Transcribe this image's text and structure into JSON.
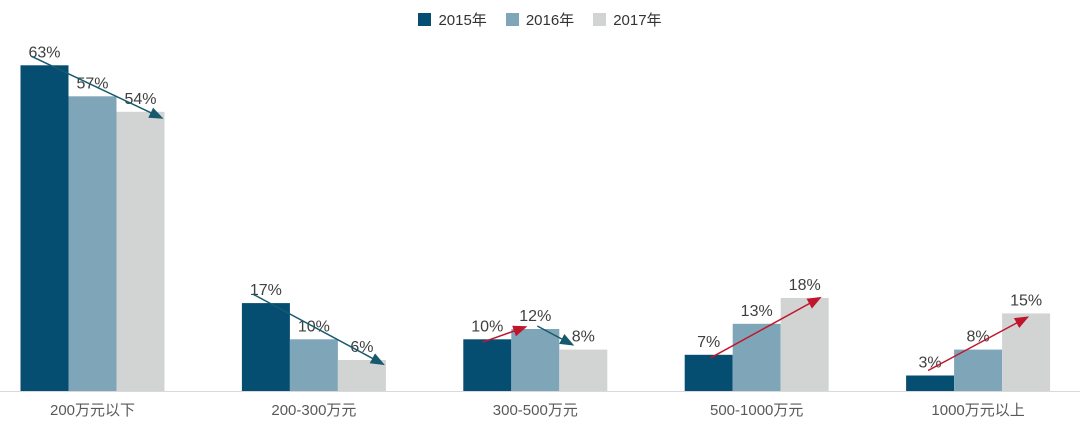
{
  "chart_data": {
    "type": "bar",
    "title": "",
    "categories": [
      "200万元以下",
      "200-300万元",
      "300-500万元",
      "500-1000万元",
      "1000万元以上"
    ],
    "series": [
      {
        "name": "2015年",
        "color": "#064D72",
        "values": [
          63,
          17,
          10,
          7,
          3
        ]
      },
      {
        "name": "2016年",
        "color": "#7FA6B8",
        "values": [
          57,
          10,
          12,
          13,
          8
        ]
      },
      {
        "name": "2017年",
        "color": "#D2D4D4",
        "values": [
          54,
          6,
          8,
          18,
          15
        ]
      }
    ],
    "value_suffix": "%",
    "data_labels": "above-each-bar",
    "legend_position": "top-center",
    "grid": false,
    "y_axis_visible": false,
    "ylim": [
      0,
      70
    ],
    "annotations": {
      "arrows": [
        {
          "group": 0,
          "from_series": 0,
          "to_series": 2,
          "trend": "down",
          "color": "#175A6E"
        },
        {
          "group": 1,
          "from_series": 0,
          "to_series": 2,
          "trend": "down",
          "color": "#175A6E"
        },
        {
          "group": 2,
          "from_series": 0,
          "to_series": 1,
          "trend": "up",
          "color": "#C0162C"
        },
        {
          "group": 2,
          "from_series": 1,
          "to_series": 2,
          "trend": "down",
          "color": "#175A6E"
        },
        {
          "group": 3,
          "from_series": 0,
          "to_series": 2,
          "trend": "up",
          "color": "#C0162C"
        },
        {
          "group": 4,
          "from_series": 0,
          "to_series": 2,
          "trend": "up",
          "color": "#C0162C"
        }
      ]
    },
    "colors": {
      "axis_line": "#D9D9D9",
      "value_label": "#3F3F3F",
      "axis_label": "#595959",
      "legend_text": "#333333"
    }
  }
}
